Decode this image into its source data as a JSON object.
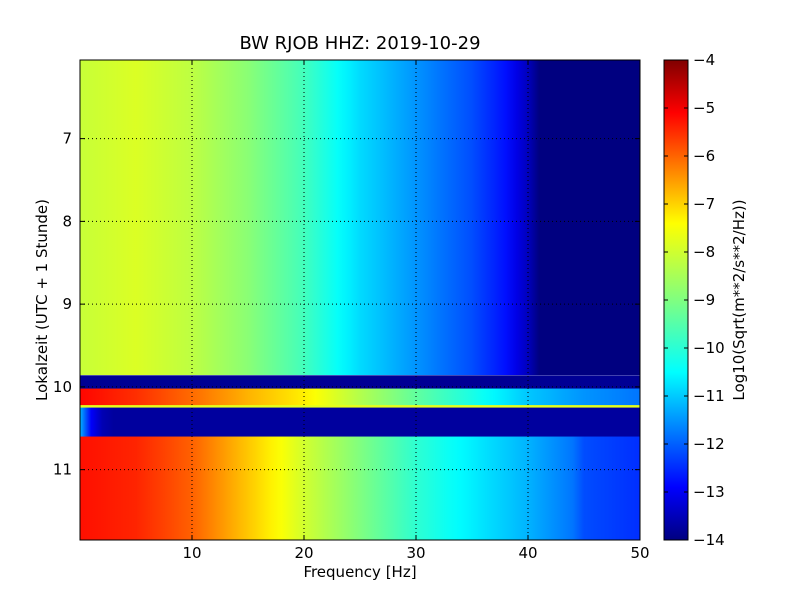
{
  "figure": {
    "title": "BW RJOB HHZ: 2019-10-29"
  },
  "chart_data": {
    "type": "heatmap",
    "title": "BW RJOB HHZ: 2019-10-29",
    "xlabel": "Frequency [Hz]",
    "ylabel": "Lokalzeit (UTC + 1 Stunde)",
    "colorbar_label": "Log10(Sqrt(m**2/s**2/Hz))",
    "xlim": [
      0,
      50
    ],
    "ylim": [
      11.85,
      6.05
    ],
    "y_axis_inverted": true,
    "xticks": [
      10,
      20,
      30,
      40,
      50
    ],
    "xtick_labels": [
      "10",
      "20",
      "30",
      "40",
      "50"
    ],
    "yticks": [
      7,
      8,
      9,
      10,
      11
    ],
    "ytick_labels": [
      "7",
      "8",
      "9",
      "10",
      "11"
    ],
    "clim": [
      -14,
      -4
    ],
    "colorbar_ticks": [
      -4,
      -5,
      -6,
      -7,
      -8,
      -9,
      -10,
      -11,
      -12,
      -13,
      -14
    ],
    "colorbar_tick_labels": [
      "−4",
      "−5",
      "−6",
      "−7",
      "−8",
      "−9",
      "−10",
      "−11",
      "−12",
      "−13",
      "−14"
    ],
    "colormap": "jet",
    "grid": true,
    "grid_style": "dotted",
    "approx_spectrum_profiles": [
      {
        "time_start": 6.05,
        "time_end": 9.85,
        "freq_hz": [
          0,
          5,
          10,
          15,
          20,
          25,
          30,
          35,
          38,
          40,
          41,
          42,
          50
        ],
        "log10_amplitude": [
          -8.3,
          -8.1,
          -8.4,
          -8.9,
          -9.6,
          -10.6,
          -11.3,
          -12.0,
          -12.6,
          -13.4,
          -14.0,
          -14.0,
          -14.0
        ]
      },
      {
        "time_start": 9.86,
        "time_end": 10.02,
        "freq_hz": [
          0,
          50
        ],
        "log10_amplitude": [
          -13.8,
          -13.8
        ]
      },
      {
        "time_start": 10.02,
        "time_end": 10.22,
        "freq_hz": [
          0,
          5,
          10,
          15,
          20,
          25,
          30,
          35,
          40,
          45,
          50
        ],
        "log10_amplitude": [
          -5.3,
          -5.7,
          -6.3,
          -7.0,
          -7.6,
          -8.5,
          -9.3,
          -10.0,
          -10.8,
          -11.3,
          -11.6
        ]
      },
      {
        "time_start": 10.22,
        "time_end": 10.25,
        "freq_hz": [
          0,
          50
        ],
        "log10_amplitude": [
          -8.0,
          -8.0
        ]
      },
      {
        "time_start": 10.25,
        "time_end": 10.6,
        "freq_hz": [
          0,
          0.5,
          1,
          2,
          3,
          50
        ],
        "log10_amplitude": [
          -11.0,
          -11.8,
          -12.8,
          -13.5,
          -13.7,
          -13.7
        ]
      },
      {
        "time_start": 10.6,
        "time_end": 11.85,
        "freq_hz": [
          0,
          5,
          10,
          15,
          20,
          25,
          30,
          35,
          40,
          44,
          45,
          50
        ],
        "log10_amplitude": [
          -5.4,
          -5.6,
          -6.2,
          -7.2,
          -8.2,
          -9.0,
          -9.8,
          -10.4,
          -11.0,
          -11.6,
          -12.0,
          -12.3
        ]
      }
    ]
  }
}
